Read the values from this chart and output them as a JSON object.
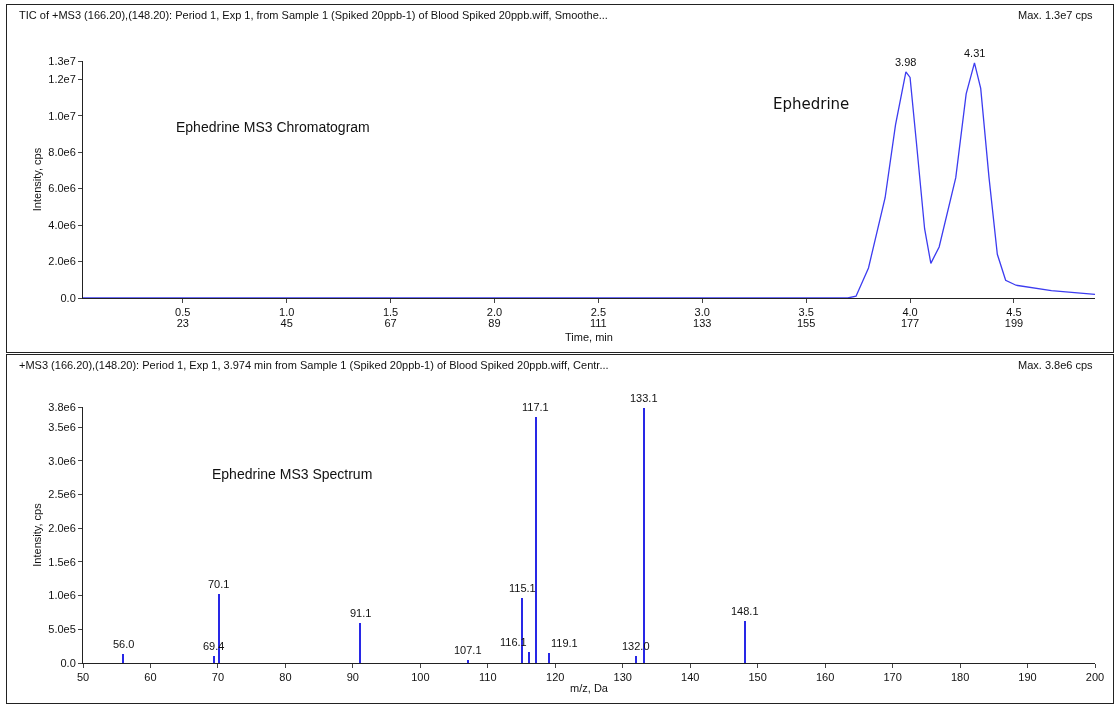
{
  "chart_data": [
    {
      "type": "line",
      "title": "TIC of +MS3 (166.20),(148.20): Period 1, Exp 1, from Sample 1 (Spiked 20ppb-1) of Blood Spiked 20ppb.wiff, Smoothe...",
      "xlabel": "Time, min",
      "ylabel": "Intensity, cps",
      "color": "#3c3cf0",
      "x": [
        0.02,
        1.0,
        2.0,
        3.0,
        3.7,
        3.74,
        3.8,
        3.88,
        3.93,
        3.98,
        4.0,
        4.03,
        4.07,
        4.1,
        4.14,
        4.22,
        4.27,
        4.31,
        4.34,
        4.38,
        4.42,
        4.46,
        4.51,
        4.68,
        4.89
      ],
      "values": [
        0,
        0,
        0,
        0,
        0,
        100000,
        1650000,
        5500000,
        9500000,
        12400000,
        12100000,
        8600000,
        3800000,
        1900000,
        2800000,
        6600000,
        11200000,
        12900000,
        11500000,
        6600000,
        2400000,
        970000,
        700000,
        400000,
        200000
      ],
      "xlim": [
        0.02,
        4.89
      ],
      "xticks": [
        {
          "value": 0.5,
          "label": "0.5"
        },
        {
          "value": 1.0,
          "label": "1.0"
        },
        {
          "value": 1.5,
          "label": "1.5"
        },
        {
          "value": 2.0,
          "label": "2.0"
        },
        {
          "value": 2.5,
          "label": "2.5"
        },
        {
          "value": 3.0,
          "label": "3.0"
        },
        {
          "value": 3.5,
          "label": "3.5"
        },
        {
          "value": 4.0,
          "label": "4.0"
        },
        {
          "value": 4.5,
          "label": "4.5"
        }
      ],
      "x2lim": [
        1.88,
        216.16
      ],
      "x2ticks": [
        23,
        45,
        67,
        89,
        111,
        133,
        155,
        177,
        199
      ],
      "ylim": [
        0,
        13000000
      ],
      "yticks": [
        {
          "value": 0,
          "label": "0.0"
        },
        {
          "value": 2000000,
          "label": "2.0e6"
        },
        {
          "value": 4000000,
          "label": "4.0e6"
        },
        {
          "value": 6000000,
          "label": "6.0e6"
        },
        {
          "value": 8000000,
          "label": "8.0e6"
        },
        {
          "value": 10000000,
          "label": "1.0e7"
        },
        {
          "value": 12000000,
          "label": "1.2e7"
        },
        {
          "value": 13000000,
          "label": "1.3e7"
        }
      ],
      "grid": false,
      "annotations": [
        "Max. 1.3e7 cps",
        "Ephedrine MS3 Chromatogram",
        "Ephedrine",
        {
          "text": "3.98",
          "x": 3.98,
          "y": 12400000
        },
        {
          "text": "4.31",
          "x": 4.31,
          "y": 12900000
        }
      ]
    },
    {
      "type": "bar",
      "title": "+MS3 (166.20),(148.20): Period 1, Exp 1, 3.974 min from Sample 1 (Spiked 20ppb-1) of Blood Spiked 20ppb.wiff, Centr...",
      "xlabel": "m/z, Da",
      "ylabel": "Intensity, cps",
      "color": "#2828e6",
      "x": [
        56.0,
        69.4,
        70.1,
        91.1,
        107.1,
        115.1,
        116.1,
        117.1,
        119.1,
        132.0,
        133.1,
        148.1
      ],
      "values": [
        130000,
        100000,
        1020000,
        600000,
        50000,
        970000,
        170000,
        3650000,
        150000,
        100000,
        3780000,
        620000
      ],
      "xlim": [
        50,
        200
      ],
      "xticks": [
        50,
        60,
        70,
        80,
        90,
        100,
        110,
        120,
        130,
        140,
        150,
        160,
        170,
        180,
        190,
        200
      ],
      "ylim": [
        0,
        3800000
      ],
      "yticks": [
        {
          "value": 0,
          "label": "0.0"
        },
        {
          "value": 500000,
          "label": "5.0e5"
        },
        {
          "value": 1000000,
          "label": "1.0e6"
        },
        {
          "value": 1500000,
          "label": "1.5e6"
        },
        {
          "value": 2000000,
          "label": "2.0e6"
        },
        {
          "value": 2500000,
          "label": "2.5e6"
        },
        {
          "value": 3000000,
          "label": "3.0e6"
        },
        {
          "value": 3500000,
          "label": "3.5e6"
        },
        {
          "value": 3800000,
          "label": "3.8e6"
        }
      ],
      "grid": false,
      "annotations": [
        "Max. 3.8e6 cps",
        "Ephedrine MS3 Spectrum",
        {
          "text": "56.0",
          "x": 56.0,
          "y": 130000
        },
        {
          "text": "69.4",
          "x": 69.4,
          "y": 100000
        },
        {
          "text": "70.1",
          "x": 70.1,
          "y": 1020000
        },
        {
          "text": "91.1",
          "x": 91.1,
          "y": 600000
        },
        {
          "text": "107.1",
          "x": 107.1,
          "y": 50000
        },
        {
          "text": "115.1",
          "x": 115.1,
          "y": 970000
        },
        {
          "text": "116.1",
          "x": 116.1,
          "y": 170000
        },
        {
          "text": "117.1",
          "x": 117.1,
          "y": 3650000
        },
        {
          "text": "119.1",
          "x": 119.1,
          "y": 150000
        },
        {
          "text": "132.0",
          "x": 132.0,
          "y": 100000
        },
        {
          "text": "133.1",
          "x": 133.1,
          "y": 3780000
        },
        {
          "text": "148.1",
          "x": 148.1,
          "y": 620000
        }
      ]
    }
  ]
}
